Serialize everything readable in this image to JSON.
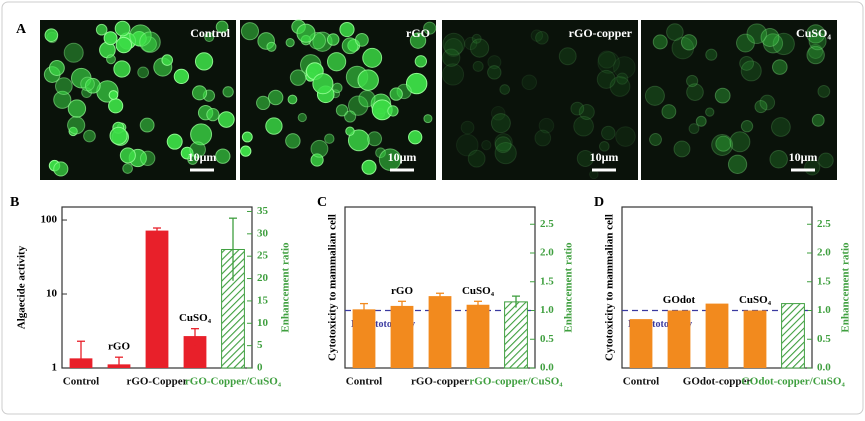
{
  "panel_a": {
    "label": "A",
    "images": [
      {
        "title": "Control",
        "scale_bar": "10μm"
      },
      {
        "title": "rGO",
        "scale_bar": "10μm"
      },
      {
        "title": "rGO-copper",
        "scale_bar": "10μm"
      },
      {
        "title": "CuSO₄",
        "scale_bar": "10μm"
      }
    ]
  },
  "chart_data": [
    {
      "type": "bar",
      "panel": "B",
      "ylabel": "Algaecide activity",
      "y2label": "Enhancement ratio",
      "log_scale": true,
      "ylim": [
        1,
        150
      ],
      "yticks": [
        1,
        10,
        100
      ],
      "y2lim": [
        0,
        36
      ],
      "y2ticks": [
        0,
        5,
        10,
        15,
        20,
        25,
        30,
        35
      ],
      "categories": [
        "Control",
        null,
        "rGO-Copper",
        null,
        "rGO-Copper/CuSO₄"
      ],
      "bar_labels": [
        null,
        "rGO",
        null,
        "CuSO₄",
        null
      ],
      "series": [
        {
          "color": "#e8202a",
          "values": [
            1.35,
            1.12,
            72,
            2.7,
            null
          ],
          "errors": [
            0.95,
            0.28,
            6,
            0.7,
            null
          ]
        },
        {
          "color": "#3f9f3f",
          "axis": "y2",
          "hatched": true,
          "values": [
            null,
            null,
            null,
            null,
            26.5
          ],
          "errors": [
            null,
            null,
            null,
            null,
            7
          ]
        }
      ]
    },
    {
      "type": "bar",
      "panel": "C",
      "ylabel": "Cytotoxicity to mammalian cell",
      "y2label": "Enhancement ratio",
      "ylim": [
        0,
        2.8
      ],
      "y2lim": [
        0,
        2.8
      ],
      "y2ticks": [
        {
          "value": 0,
          "label": "0.0"
        },
        {
          "value": 0.5,
          "label": "0.5"
        },
        {
          "value": 1,
          "label": "1.0"
        },
        {
          "value": 1.5,
          "label": "1.5"
        },
        {
          "value": 2,
          "label": "2.0"
        },
        {
          "value": 2.5,
          "label": "2.5"
        }
      ],
      "categories": [
        "Control",
        null,
        "rGO-copper",
        null,
        "rGO-copper/CuSO₄"
      ],
      "bar_labels": [
        null,
        "rGO",
        null,
        "CuSO₄",
        null
      ],
      "reference_line": {
        "value": 1,
        "label": "No cytotoxicity"
      },
      "series": [
        {
          "color": "#f28a1e",
          "values": [
            1.02,
            1.08,
            1.25,
            1.1,
            null
          ],
          "errors": [
            0.1,
            0.08,
            0.05,
            0.06,
            null
          ]
        },
        {
          "color": "#3f9f3f",
          "axis": "y2",
          "hatched": true,
          "values": [
            null,
            null,
            null,
            null,
            1.15
          ],
          "errors": [
            null,
            null,
            null,
            null,
            0.1
          ]
        }
      ]
    },
    {
      "type": "bar",
      "panel": "D",
      "ylabel": "Cytotoxicity to mammalian cell",
      "y2label": "Enhancement ratio",
      "ylim": [
        0,
        2.8
      ],
      "y2lim": [
        0,
        2.8
      ],
      "y2ticks": [
        {
          "value": 0,
          "label": "0.0"
        },
        {
          "value": 0.5,
          "label": "0.5"
        },
        {
          "value": 1,
          "label": "1.0"
        },
        {
          "value": 1.5,
          "label": "1.5"
        },
        {
          "value": 2,
          "label": "2.0"
        },
        {
          "value": 2.5,
          "label": "2.5"
        }
      ],
      "categories": [
        "Control",
        null,
        "GOdot-copper",
        null,
        "GOdot-copper/CuSO₄"
      ],
      "bar_labels": [
        null,
        "GOdot",
        null,
        "CuSO₄",
        null
      ],
      "reference_line": {
        "value": 1,
        "label": "No cytotoxicity"
      },
      "series": [
        {
          "color": "#f28a1e",
          "values": [
            0.85,
            1.0,
            1.12,
            1.0,
            null
          ],
          "errors": [
            null,
            null,
            null,
            null,
            null
          ]
        },
        {
          "color": "#3f9f3f",
          "axis": "y2",
          "hatched": true,
          "values": [
            null,
            null,
            null,
            null,
            1.12
          ],
          "errors": [
            null,
            null,
            null,
            null,
            null
          ]
        }
      ]
    }
  ]
}
